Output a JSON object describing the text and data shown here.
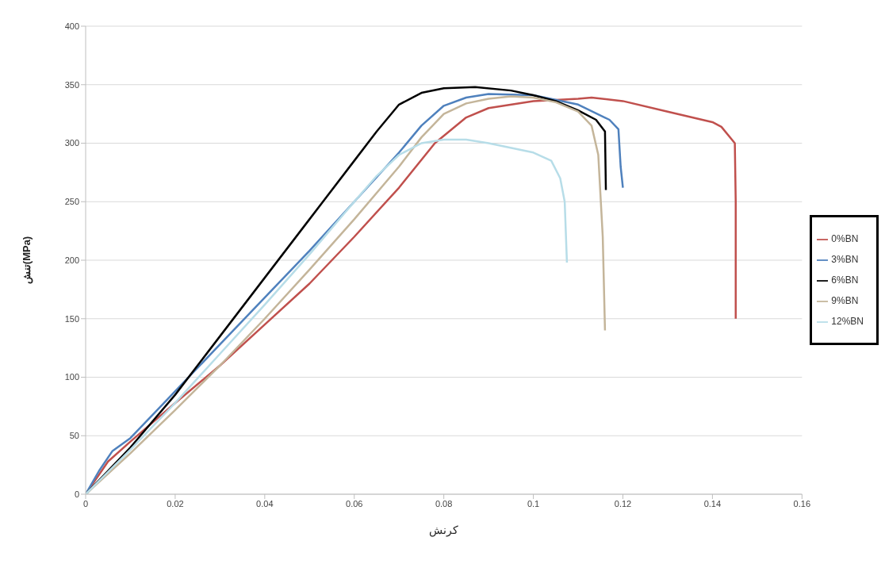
{
  "chart_data": {
    "type": "line",
    "xlabel": "کرنش",
    "ylabel": "تنش(MPa)",
    "xlim": [
      0,
      0.16
    ],
    "xticks": [
      0,
      0.02,
      0.04,
      0.06,
      0.08,
      0.1,
      0.12,
      0.14,
      0.16
    ],
    "ylim": [
      0,
      400
    ],
    "yticks": [
      0,
      50,
      100,
      150,
      200,
      250,
      300,
      350,
      400
    ],
    "grid": "y",
    "legend": "right",
    "marker": "none",
    "line_style": "solid",
    "series": [
      {
        "name": "0%BN",
        "color": "#c0504d",
        "x": [
          0,
          0.005,
          0.01,
          0.02,
          0.03,
          0.04,
          0.05,
          0.06,
          0.07,
          0.078,
          0.085,
          0.09,
          0.1,
          0.11,
          0.113,
          0.12,
          0.13,
          0.14,
          0.142,
          0.145,
          0.1452,
          0.1452
        ],
        "values": [
          0,
          28,
          45,
          78,
          110,
          145,
          180,
          220,
          262,
          300,
          322,
          330,
          336,
          338,
          339,
          336,
          327,
          318,
          314,
          300,
          250,
          150
        ]
      },
      {
        "name": "3%BN",
        "color": "#4f81bd",
        "x": [
          0,
          0.003,
          0.006,
          0.01,
          0.02,
          0.03,
          0.04,
          0.05,
          0.06,
          0.07,
          0.075,
          0.08,
          0.085,
          0.09,
          0.1,
          0.11,
          0.117,
          0.119,
          0.1195,
          0.12
        ],
        "values": [
          0,
          20,
          37,
          48,
          88,
          128,
          168,
          208,
          250,
          292,
          315,
          332,
          339,
          342,
          341,
          333,
          320,
          312,
          280,
          262
        ]
      },
      {
        "name": "6%BN",
        "color": "#000000",
        "x": [
          0,
          0.005,
          0.01,
          0.02,
          0.03,
          0.04,
          0.05,
          0.06,
          0.065,
          0.07,
          0.075,
          0.08,
          0.087,
          0.095,
          0.1,
          0.105,
          0.11,
          0.114,
          0.116,
          0.1162
        ],
        "values": [
          0,
          20,
          40,
          85,
          135,
          185,
          235,
          285,
          310,
          333,
          343,
          347,
          348,
          345,
          341,
          336,
          328,
          320,
          310,
          260
        ]
      },
      {
        "name": "9%BN",
        "color": "#c4b59a",
        "x": [
          0,
          0.01,
          0.02,
          0.03,
          0.04,
          0.05,
          0.06,
          0.07,
          0.075,
          0.08,
          0.085,
          0.09,
          0.095,
          0.1,
          0.105,
          0.11,
          0.113,
          0.1145,
          0.1155,
          0.116
        ],
        "values": [
          0,
          35,
          72,
          110,
          150,
          192,
          235,
          280,
          305,
          325,
          334,
          338,
          340,
          339,
          335,
          327,
          315,
          290,
          220,
          140
        ]
      },
      {
        "name": "12%BN",
        "color": "#b7dde8",
        "x": [
          0,
          0.01,
          0.02,
          0.03,
          0.04,
          0.05,
          0.06,
          0.065,
          0.07,
          0.075,
          0.08,
          0.085,
          0.09,
          0.1,
          0.104,
          0.106,
          0.107,
          0.1075
        ],
        "values": [
          0,
          38,
          78,
          120,
          162,
          205,
          250,
          272,
          290,
          300,
          303,
          303,
          300,
          292,
          285,
          270,
          250,
          198
        ]
      }
    ]
  }
}
